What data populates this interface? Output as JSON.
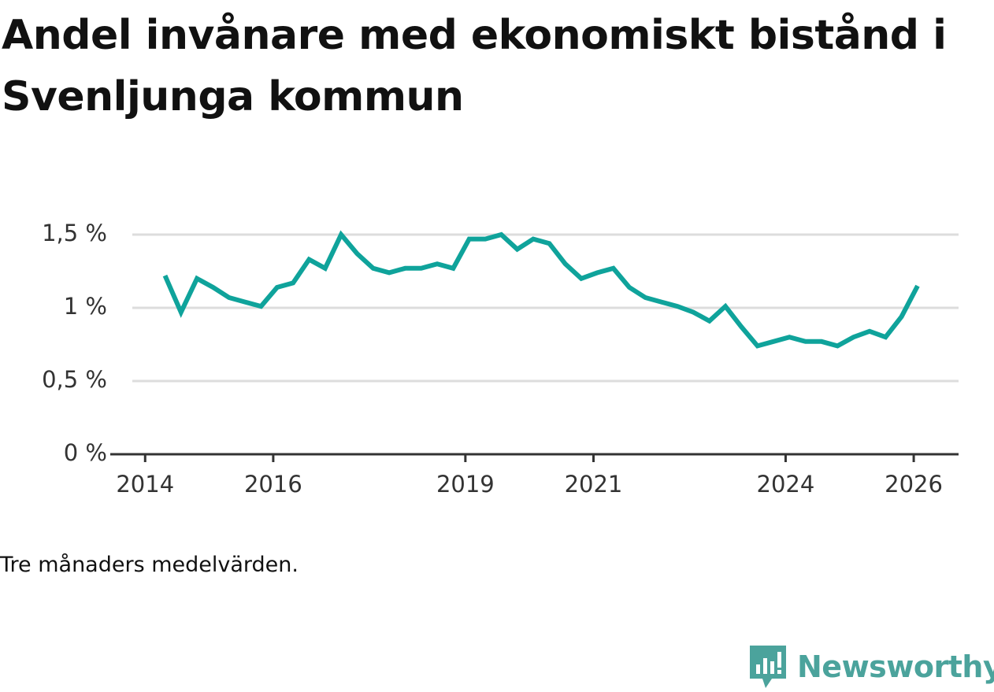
{
  "title": "Andel invånare med ekonomiskt bistånd i Svenljunga kommun",
  "footnote": "Tre månaders medelvärden.",
  "brand": {
    "name": "Newsworthy",
    "icon": "newsworthy-logo-icon",
    "color": "#4ba39c"
  },
  "colors": {
    "line": "#0fa39b",
    "grid": "#dddddd",
    "axis": "#333333",
    "tick_text": "#333333"
  },
  "chart_data": {
    "type": "line",
    "title": "Andel invånare med ekonomiskt bistånd i Svenljunga kommun",
    "xlabel": "",
    "ylabel": "",
    "x_ticks": [
      {
        "label": "2014",
        "value": 2014.0
      },
      {
        "label": "2016",
        "value": 2016.0
      },
      {
        "label": "2019",
        "value": 2019.0
      },
      {
        "label": "2021",
        "value": 2021.0
      },
      {
        "label": "2024",
        "value": 2024.0
      },
      {
        "label": "2026",
        "value": 2026.0
      }
    ],
    "y_ticks": [
      {
        "label": "0 %",
        "value": 0
      },
      {
        "label": "0,5 %",
        "value": 0.5
      },
      {
        "label": "1 %",
        "value": 1.0
      },
      {
        "label": "1,5 %",
        "value": 1.5
      }
    ],
    "xlim": [
      2013.8,
      2026.7
    ],
    "ylim": [
      0,
      1.5
    ],
    "grid": true,
    "series": [
      {
        "name": "Andel invånare med ekonomiskt bistånd",
        "x": [
          2014.31,
          2014.56,
          2014.81,
          2015.06,
          2015.31,
          2015.56,
          2015.81,
          2016.06,
          2016.31,
          2016.56,
          2016.81,
          2017.06,
          2017.31,
          2017.56,
          2017.81,
          2018.06,
          2018.31,
          2018.56,
          2018.81,
          2019.06,
          2019.31,
          2019.56,
          2019.81,
          2020.06,
          2020.31,
          2020.56,
          2020.81,
          2021.06,
          2021.31,
          2021.56,
          2021.81,
          2022.06,
          2022.31,
          2022.56,
          2022.81,
          2023.06,
          2023.31,
          2023.56,
          2023.81,
          2024.06,
          2024.31,
          2024.56,
          2024.81,
          2025.06,
          2025.31,
          2025.56,
          2025.81,
          2026.06
        ],
        "values": [
          1.22,
          0.97,
          1.2,
          1.14,
          1.07,
          1.04,
          1.01,
          1.14,
          1.17,
          1.33,
          1.27,
          1.5,
          1.37,
          1.27,
          1.24,
          1.27,
          1.27,
          1.3,
          1.27,
          1.47,
          1.47,
          1.5,
          1.4,
          1.47,
          1.44,
          1.3,
          1.2,
          1.24,
          1.27,
          1.14,
          1.07,
          1.04,
          1.01,
          0.97,
          0.91,
          1.01,
          0.87,
          0.74,
          0.77,
          0.8,
          0.77,
          0.77,
          0.74,
          0.8,
          0.84,
          0.8,
          0.94,
          1.15
        ]
      }
    ]
  }
}
